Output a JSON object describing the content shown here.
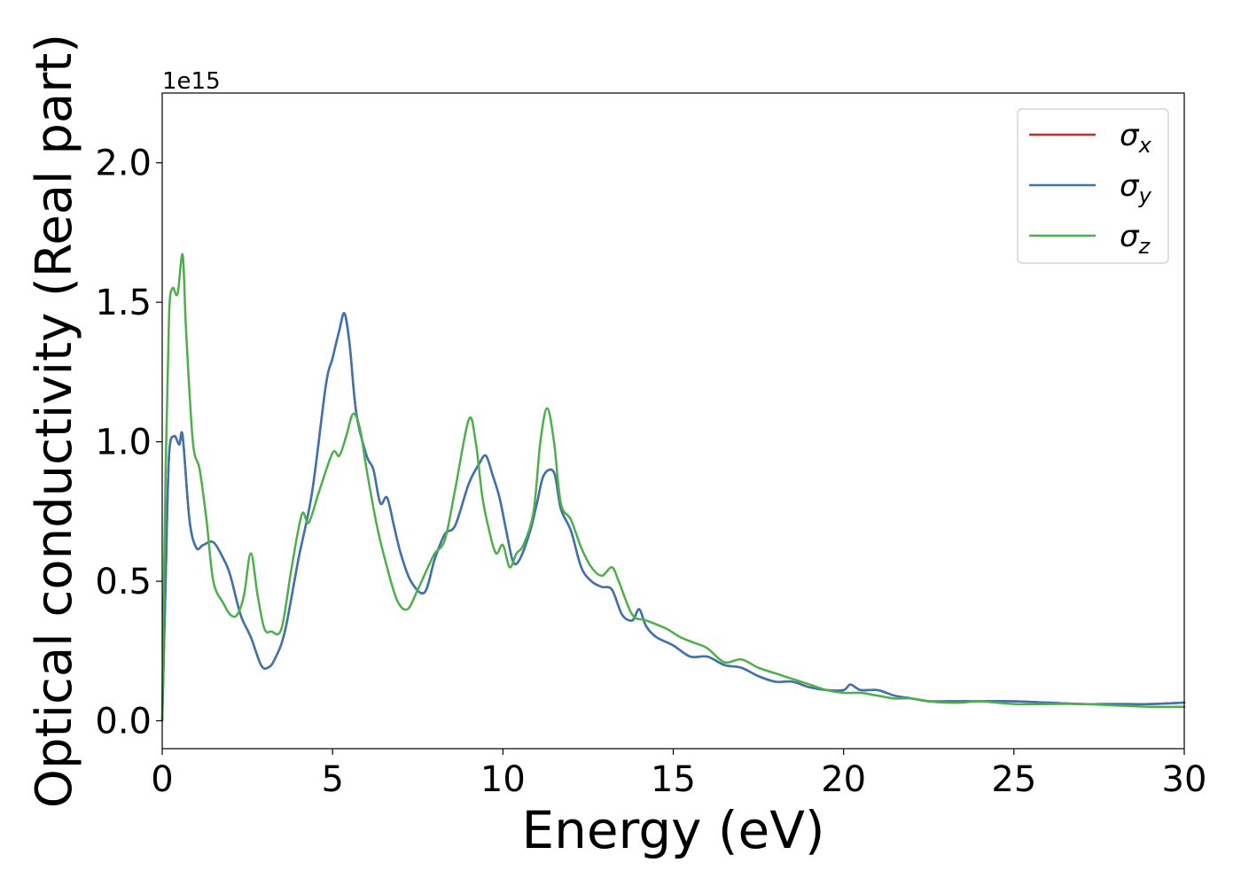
{
  "chart_data": {
    "type": "line",
    "xlabel": "Energy (eV)",
    "ylabel": "Optical conductivity (Real part)",
    "offset_label": "1e15",
    "xlim": [
      0,
      30
    ],
    "ylim": [
      -0.1,
      2.25
    ],
    "y_scale_factor": 1000000000000000.0,
    "xticks": [
      0,
      5,
      10,
      15,
      20,
      25,
      30
    ],
    "xtick_labels": [
      "0",
      "5",
      "10",
      "15",
      "20",
      "25",
      "30"
    ],
    "yticks": [
      0.0,
      0.5,
      1.0,
      1.5,
      2.0
    ],
    "ytick_labels": [
      "0.0",
      "0.5",
      "1.0",
      "1.5",
      "2.0"
    ],
    "grid": false,
    "legend_position": "top-right",
    "series": [
      {
        "name": "σx",
        "label_base": "σ",
        "label_sub": "x",
        "color": "#d62728",
        "x": [
          0,
          0.1,
          0.2,
          0.35,
          0.5,
          0.6,
          0.8,
          1.0,
          1.2,
          1.5,
          1.8,
          2.0,
          2.3,
          2.6,
          2.9,
          3.1,
          3.3,
          3.6,
          4.0,
          4.4,
          4.8,
          5.0,
          5.2,
          5.35,
          5.5,
          5.7,
          6.0,
          6.2,
          6.4,
          6.6,
          6.8,
          7.0,
          7.3,
          7.7,
          8.0,
          8.3,
          8.6,
          9.0,
          9.3,
          9.5,
          9.7,
          9.9,
          10.1,
          10.3,
          10.5,
          10.8,
          11.0,
          11.2,
          11.5,
          11.7,
          12.0,
          12.3,
          12.6,
          12.9,
          13.2,
          13.5,
          13.8,
          14.0,
          14.2,
          14.5,
          15.0,
          15.5,
          16.0,
          16.5,
          17.0,
          17.5,
          18.0,
          18.5,
          19.0,
          19.5,
          20.0,
          20.2,
          20.5,
          21.0,
          21.5,
          22.0,
          22.5,
          23.0,
          23.5,
          24.0,
          25.0,
          26.0,
          27.0,
          28.0,
          29.0,
          30.0
        ],
        "y": [
          0,
          0.5,
          0.95,
          1.02,
          0.99,
          1.02,
          0.72,
          0.62,
          0.63,
          0.64,
          0.58,
          0.52,
          0.38,
          0.3,
          0.2,
          0.19,
          0.22,
          0.32,
          0.58,
          0.82,
          1.2,
          1.3,
          1.4,
          1.46,
          1.35,
          1.1,
          0.95,
          0.9,
          0.78,
          0.8,
          0.7,
          0.6,
          0.5,
          0.46,
          0.58,
          0.67,
          0.7,
          0.85,
          0.92,
          0.95,
          0.88,
          0.8,
          0.68,
          0.57,
          0.58,
          0.68,
          0.78,
          0.88,
          0.89,
          0.76,
          0.68,
          0.55,
          0.5,
          0.48,
          0.47,
          0.38,
          0.36,
          0.4,
          0.34,
          0.3,
          0.27,
          0.23,
          0.23,
          0.2,
          0.19,
          0.16,
          0.14,
          0.14,
          0.12,
          0.11,
          0.11,
          0.13,
          0.11,
          0.11,
          0.09,
          0.08,
          0.07,
          0.07,
          0.07,
          0.07,
          0.07,
          0.065,
          0.06,
          0.06,
          0.06,
          0.065
        ]
      },
      {
        "name": "σy",
        "label_base": "σ",
        "label_sub": "y",
        "color": "#3b75af",
        "x": [
          0,
          0.1,
          0.2,
          0.35,
          0.5,
          0.6,
          0.8,
          1.0,
          1.2,
          1.5,
          1.8,
          2.0,
          2.3,
          2.6,
          2.9,
          3.1,
          3.3,
          3.6,
          4.0,
          4.4,
          4.8,
          5.0,
          5.2,
          5.35,
          5.5,
          5.7,
          6.0,
          6.2,
          6.4,
          6.6,
          6.8,
          7.0,
          7.3,
          7.7,
          8.0,
          8.3,
          8.6,
          9.0,
          9.3,
          9.5,
          9.7,
          9.9,
          10.1,
          10.3,
          10.5,
          10.8,
          11.0,
          11.2,
          11.5,
          11.7,
          12.0,
          12.3,
          12.6,
          12.9,
          13.2,
          13.5,
          13.8,
          14.0,
          14.2,
          14.5,
          15.0,
          15.5,
          16.0,
          16.5,
          17.0,
          17.5,
          18.0,
          18.5,
          19.0,
          19.5,
          20.0,
          20.2,
          20.5,
          21.0,
          21.5,
          22.0,
          22.5,
          23.0,
          23.5,
          24.0,
          25.0,
          26.0,
          27.0,
          28.0,
          29.0,
          30.0
        ],
        "y": [
          0,
          0.5,
          0.95,
          1.02,
          0.99,
          1.02,
          0.72,
          0.62,
          0.63,
          0.64,
          0.58,
          0.52,
          0.38,
          0.3,
          0.2,
          0.19,
          0.22,
          0.32,
          0.58,
          0.82,
          1.2,
          1.3,
          1.4,
          1.46,
          1.35,
          1.1,
          0.95,
          0.9,
          0.78,
          0.8,
          0.7,
          0.6,
          0.5,
          0.46,
          0.58,
          0.67,
          0.7,
          0.85,
          0.92,
          0.95,
          0.88,
          0.8,
          0.68,
          0.57,
          0.58,
          0.68,
          0.78,
          0.88,
          0.89,
          0.76,
          0.68,
          0.55,
          0.5,
          0.48,
          0.47,
          0.38,
          0.36,
          0.4,
          0.34,
          0.3,
          0.27,
          0.23,
          0.23,
          0.2,
          0.19,
          0.16,
          0.14,
          0.14,
          0.12,
          0.11,
          0.11,
          0.13,
          0.11,
          0.11,
          0.09,
          0.08,
          0.07,
          0.07,
          0.07,
          0.07,
          0.07,
          0.065,
          0.06,
          0.06,
          0.06,
          0.065
        ]
      },
      {
        "name": "σz",
        "label_base": "σ",
        "label_sub": "z",
        "color": "#4daf4a",
        "x": [
          0,
          0.1,
          0.2,
          0.3,
          0.45,
          0.6,
          0.7,
          0.9,
          1.1,
          1.3,
          1.5,
          1.8,
          2.0,
          2.2,
          2.4,
          2.6,
          2.8,
          3.0,
          3.2,
          3.5,
          3.8,
          4.1,
          4.3,
          4.6,
          5.0,
          5.2,
          5.4,
          5.6,
          5.8,
          6.0,
          6.3,
          6.6,
          6.9,
          7.2,
          7.5,
          7.8,
          8.0,
          8.3,
          8.6,
          9.0,
          9.2,
          9.4,
          9.6,
          9.8,
          10.0,
          10.2,
          10.4,
          10.6,
          10.9,
          11.1,
          11.3,
          11.5,
          11.7,
          12.0,
          12.3,
          12.6,
          12.9,
          13.2,
          13.4,
          13.8,
          14.2,
          14.8,
          15.2,
          15.6,
          16.0,
          16.5,
          17.0,
          17.5,
          18.0,
          18.5,
          19.0,
          19.5,
          20.0,
          20.5,
          21.0,
          21.5,
          22.0,
          22.5,
          23.0,
          23.5,
          24.0,
          25.0,
          26.0,
          27.0,
          28.0,
          29.0,
          30.0
        ],
        "y": [
          0,
          0.9,
          1.45,
          1.55,
          1.53,
          1.67,
          1.4,
          1.0,
          0.9,
          0.72,
          0.5,
          0.42,
          0.38,
          0.38,
          0.45,
          0.6,
          0.45,
          0.33,
          0.32,
          0.33,
          0.55,
          0.74,
          0.71,
          0.82,
          0.96,
          0.95,
          1.02,
          1.1,
          1.05,
          0.9,
          0.7,
          0.55,
          0.43,
          0.4,
          0.47,
          0.55,
          0.6,
          0.65,
          0.83,
          1.08,
          1.0,
          0.8,
          0.68,
          0.6,
          0.63,
          0.55,
          0.6,
          0.63,
          0.75,
          1.0,
          1.12,
          1.0,
          0.78,
          0.72,
          0.62,
          0.55,
          0.52,
          0.55,
          0.5,
          0.38,
          0.36,
          0.33,
          0.3,
          0.28,
          0.26,
          0.21,
          0.22,
          0.19,
          0.17,
          0.15,
          0.13,
          0.11,
          0.1,
          0.1,
          0.09,
          0.08,
          0.08,
          0.07,
          0.065,
          0.065,
          0.07,
          0.06,
          0.06,
          0.06,
          0.055,
          0.05,
          0.05
        ]
      }
    ]
  }
}
